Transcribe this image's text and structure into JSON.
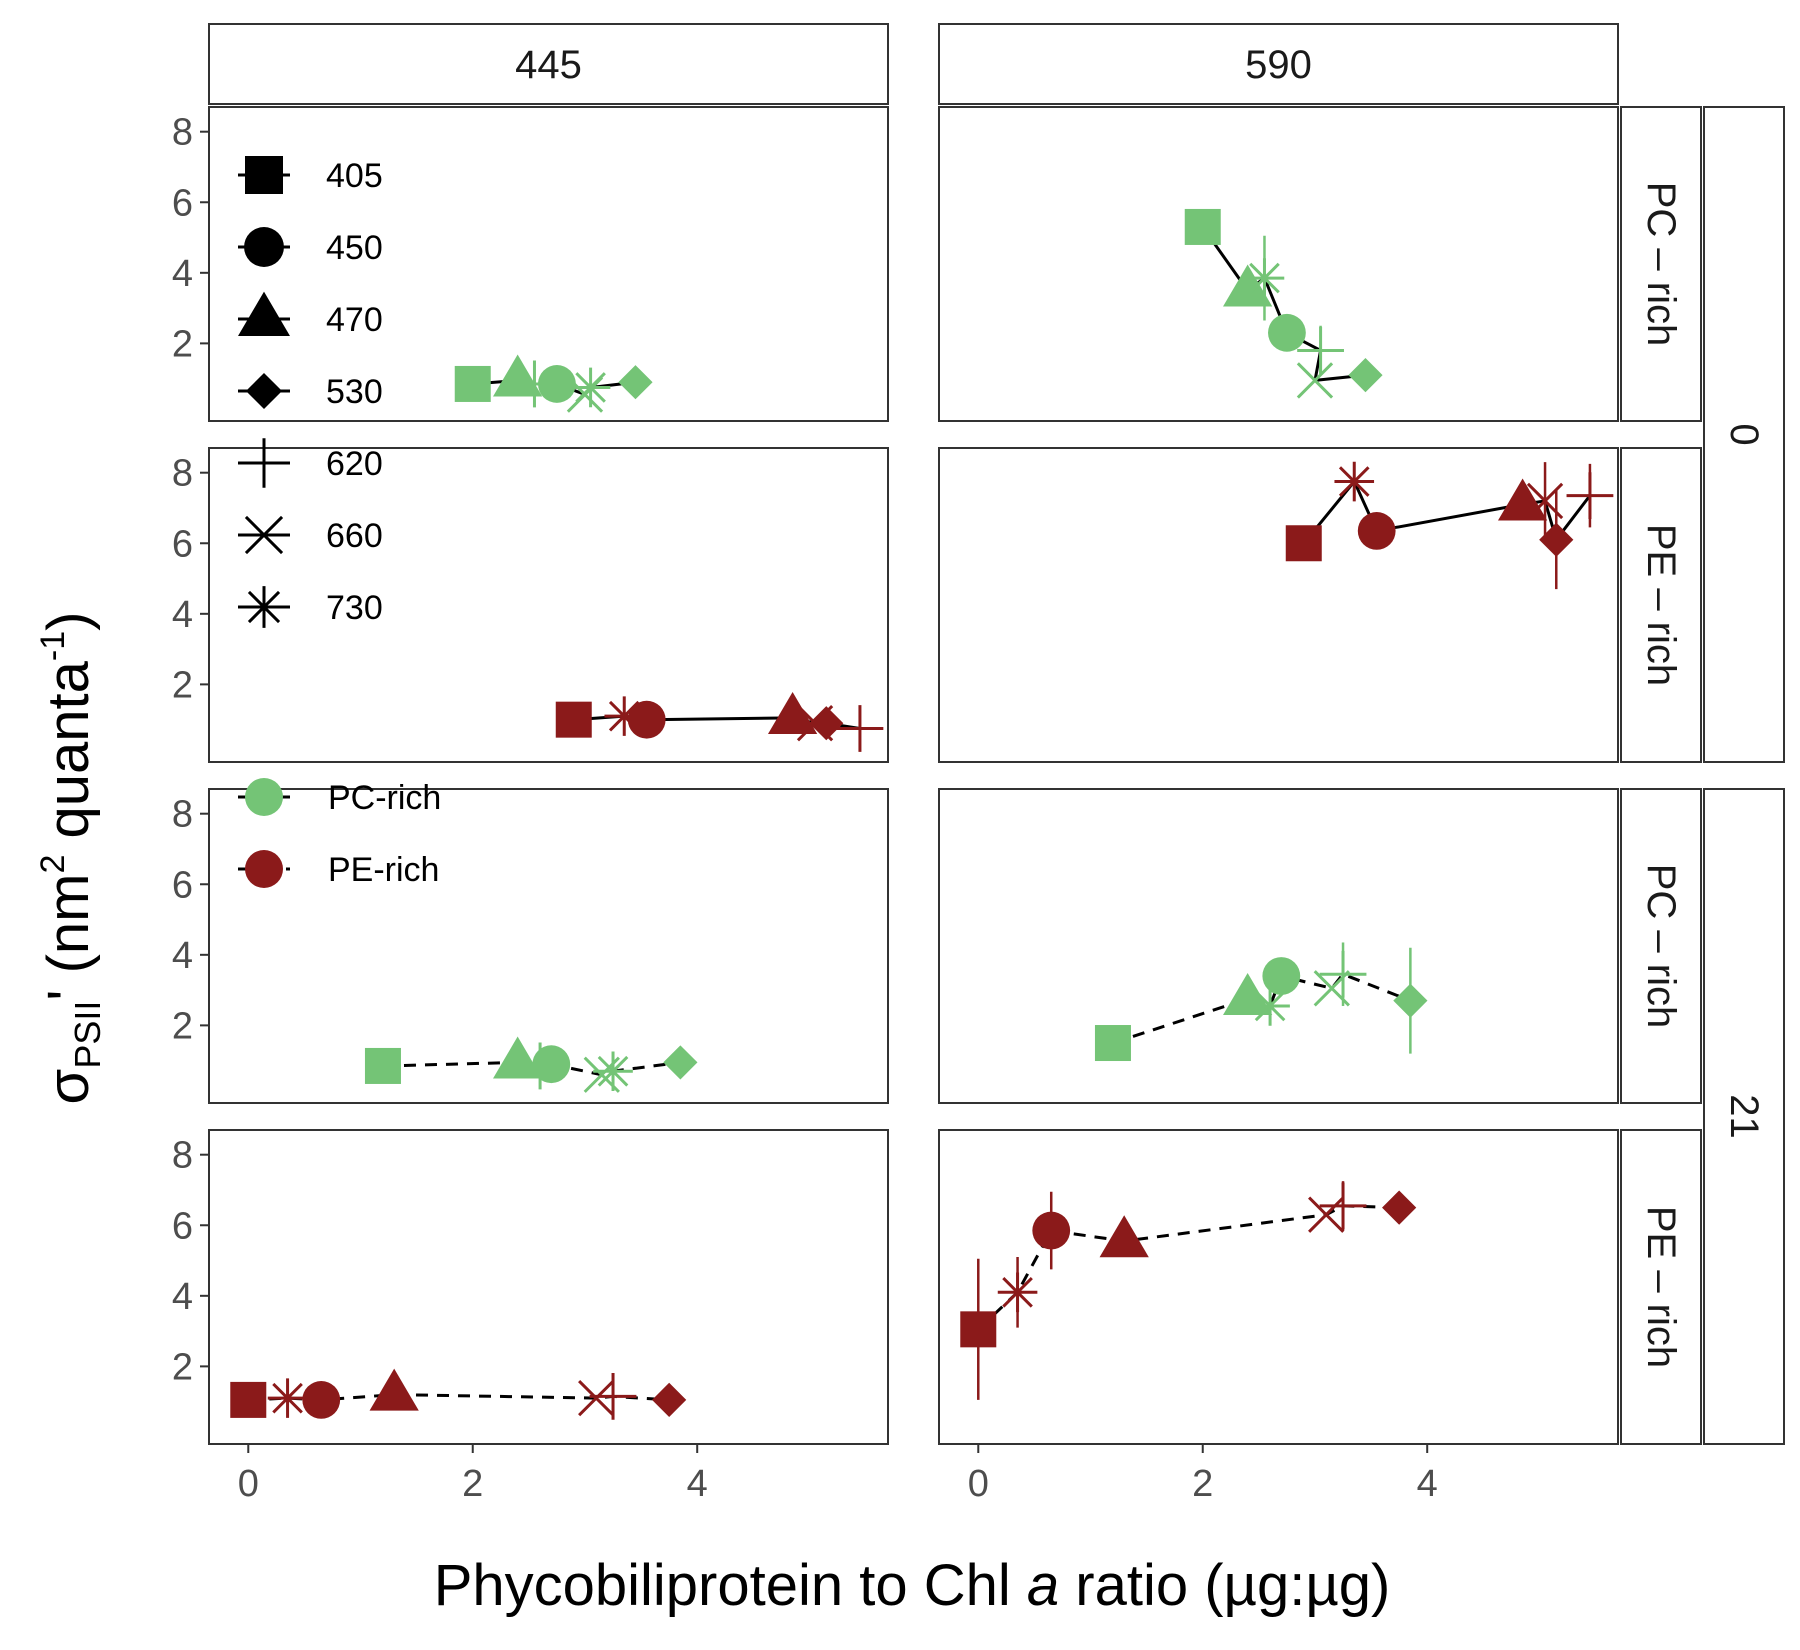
{
  "chart_data": {
    "type": "scatter",
    "xlabel": {
      "prefix": "Phycobiliprotein to Chl ",
      "italic": "a",
      "suffix": " ratio (µg:µg)"
    },
    "ylabel": {
      "sigma": "σ",
      "sub": "PSII",
      "prime": "'",
      "unit_a": " (nm",
      "sup_a": "2",
      "unit_b": " quanta",
      "sup_b": "-1",
      "unit_c": ")"
    },
    "xlim": [
      -0.35,
      5.7
    ],
    "ylim": [
      -0.2,
      8.7
    ],
    "x_ticks": [
      "0",
      "2",
      "4"
    ],
    "y_ticks": [
      "2",
      "4",
      "6",
      "8"
    ],
    "col_strips": [
      "445",
      "590"
    ],
    "row_strips": [
      "PC – rich",
      "PE – rich",
      "PC – rich",
      "PE – rich"
    ],
    "group_strips": [
      "0",
      "21"
    ],
    "colors": {
      "PC-rich": "#74c476",
      "PE-rich": "#8b1a1a"
    },
    "legend": {
      "shapes": [
        "405",
        "450",
        "470",
        "530",
        "620",
        "660",
        "730"
      ],
      "shape_icons": [
        "square",
        "circle",
        "triangle",
        "diamond",
        "plus",
        "cross",
        "asterisk"
      ],
      "groups": [
        {
          "label": "PC-rich",
          "line": "solid"
        },
        {
          "label": "PE-rich",
          "line": "dashed"
        }
      ]
    },
    "panels": [
      {
        "col": "445",
        "row": "PC – rich",
        "group": "0",
        "color": "PC-rich",
        "line": "solid",
        "points": [
          {
            "shape": "405",
            "x": 2.0,
            "y": 0.85
          },
          {
            "shape": "470",
            "x": 2.4,
            "y": 0.95
          },
          {
            "shape": "620",
            "x": 2.55,
            "y": 0.85
          },
          {
            "shape": "450",
            "x": 2.75,
            "y": 0.85
          },
          {
            "shape": "660",
            "x": 3.0,
            "y": 0.55
          },
          {
            "shape": "730",
            "x": 3.05,
            "y": 0.75
          },
          {
            "shape": "530",
            "x": 3.45,
            "y": 0.9
          }
        ]
      },
      {
        "col": "590",
        "row": "PC – rich",
        "group": "0",
        "color": "PC-rich",
        "line": "solid",
        "points": [
          {
            "shape": "405",
            "x": 2.0,
            "y": 5.3
          },
          {
            "shape": "470",
            "x": 2.4,
            "y": 3.5
          },
          {
            "shape": "730",
            "x": 2.55,
            "y": 3.85,
            "ey": 1.2
          },
          {
            "shape": "450",
            "x": 2.75,
            "y": 2.3
          },
          {
            "shape": "620",
            "x": 3.05,
            "y": 1.8,
            "ey": 0.7
          },
          {
            "shape": "660",
            "x": 3.0,
            "y": 0.95
          },
          {
            "shape": "530",
            "x": 3.45,
            "y": 1.1
          }
        ]
      },
      {
        "col": "445",
        "row": "PE – rich",
        "group": "0",
        "color": "PE-rich",
        "line": "solid",
        "points": [
          {
            "shape": "405",
            "x": 2.9,
            "y": 1.0
          },
          {
            "shape": "730",
            "x": 3.35,
            "y": 1.1
          },
          {
            "shape": "450",
            "x": 3.55,
            "y": 1.0
          },
          {
            "shape": "470",
            "x": 4.85,
            "y": 1.05
          },
          {
            "shape": "660",
            "x": 5.05,
            "y": 0.9
          },
          {
            "shape": "530",
            "x": 5.15,
            "y": 0.9
          },
          {
            "shape": "620",
            "x": 5.45,
            "y": 0.75
          }
        ]
      },
      {
        "col": "590",
        "row": "PE – rich",
        "group": "0",
        "color": "PE-rich",
        "line": "solid",
        "points": [
          {
            "shape": "405",
            "x": 2.9,
            "y": 6.0
          },
          {
            "shape": "730",
            "x": 3.35,
            "y": 7.75
          },
          {
            "shape": "450",
            "x": 3.55,
            "y": 6.35
          },
          {
            "shape": "470",
            "x": 4.85,
            "y": 7.1
          },
          {
            "shape": "660",
            "x": 5.05,
            "y": 7.2,
            "ey": 1.1
          },
          {
            "shape": "530",
            "x": 5.15,
            "y": 6.1,
            "ey": 1.4
          },
          {
            "shape": "620",
            "x": 5.45,
            "y": 7.35,
            "ey": 0.9
          }
        ]
      },
      {
        "col": "445",
        "row": "PC – rich",
        "group": "21",
        "color": "PC-rich",
        "line": "dashed",
        "points": [
          {
            "shape": "405",
            "x": 1.2,
            "y": 0.85
          },
          {
            "shape": "470",
            "x": 2.4,
            "y": 0.95
          },
          {
            "shape": "620",
            "x": 2.6,
            "y": 0.85
          },
          {
            "shape": "450",
            "x": 2.7,
            "y": 0.9
          },
          {
            "shape": "660",
            "x": 3.15,
            "y": 0.6
          },
          {
            "shape": "730",
            "x": 3.25,
            "y": 0.7
          },
          {
            "shape": "530",
            "x": 3.85,
            "y": 0.95
          }
        ]
      },
      {
        "col": "590",
        "row": "PC – rich",
        "group": "21",
        "color": "PC-rich",
        "line": "dashed",
        "points": [
          {
            "shape": "405",
            "x": 1.2,
            "y": 1.5
          },
          {
            "shape": "470",
            "x": 2.4,
            "y": 2.75
          },
          {
            "shape": "730",
            "x": 2.6,
            "y": 2.55
          },
          {
            "shape": "450",
            "x": 2.7,
            "y": 3.4
          },
          {
            "shape": "660",
            "x": 3.15,
            "y": 3.05
          },
          {
            "shape": "620",
            "x": 3.25,
            "y": 3.45,
            "ey": 0.9
          },
          {
            "shape": "530",
            "x": 3.85,
            "y": 2.7,
            "ey": 1.5
          }
        ]
      },
      {
        "col": "445",
        "row": "PE – rich",
        "group": "21",
        "color": "PE-rich",
        "line": "dashed",
        "points": [
          {
            "shape": "405",
            "x": 0.0,
            "y": 1.05
          },
          {
            "shape": "730",
            "x": 0.35,
            "y": 1.1
          },
          {
            "shape": "450",
            "x": 0.65,
            "y": 1.05
          },
          {
            "shape": "470",
            "x": 1.3,
            "y": 1.2
          },
          {
            "shape": "660",
            "x": 3.1,
            "y": 1.1
          },
          {
            "shape": "620",
            "x": 3.25,
            "y": 1.15
          },
          {
            "shape": "530",
            "x": 3.75,
            "y": 1.05
          }
        ]
      },
      {
        "col": "590",
        "row": "PE – rich",
        "group": "21",
        "color": "PE-rich",
        "line": "dashed",
        "points": [
          {
            "shape": "405",
            "x": 0.0,
            "y": 3.05,
            "ey": 2.0
          },
          {
            "shape": "730",
            "x": 0.35,
            "y": 4.1,
            "ey": 1.0
          },
          {
            "shape": "450",
            "x": 0.65,
            "y": 5.85,
            "ey": 1.1
          },
          {
            "shape": "470",
            "x": 1.3,
            "y": 5.55
          },
          {
            "shape": "660",
            "x": 3.1,
            "y": 6.3
          },
          {
            "shape": "620",
            "x": 3.25,
            "y": 6.55,
            "ey": 0.7
          },
          {
            "shape": "530",
            "x": 3.75,
            "y": 6.5
          }
        ]
      }
    ]
  }
}
